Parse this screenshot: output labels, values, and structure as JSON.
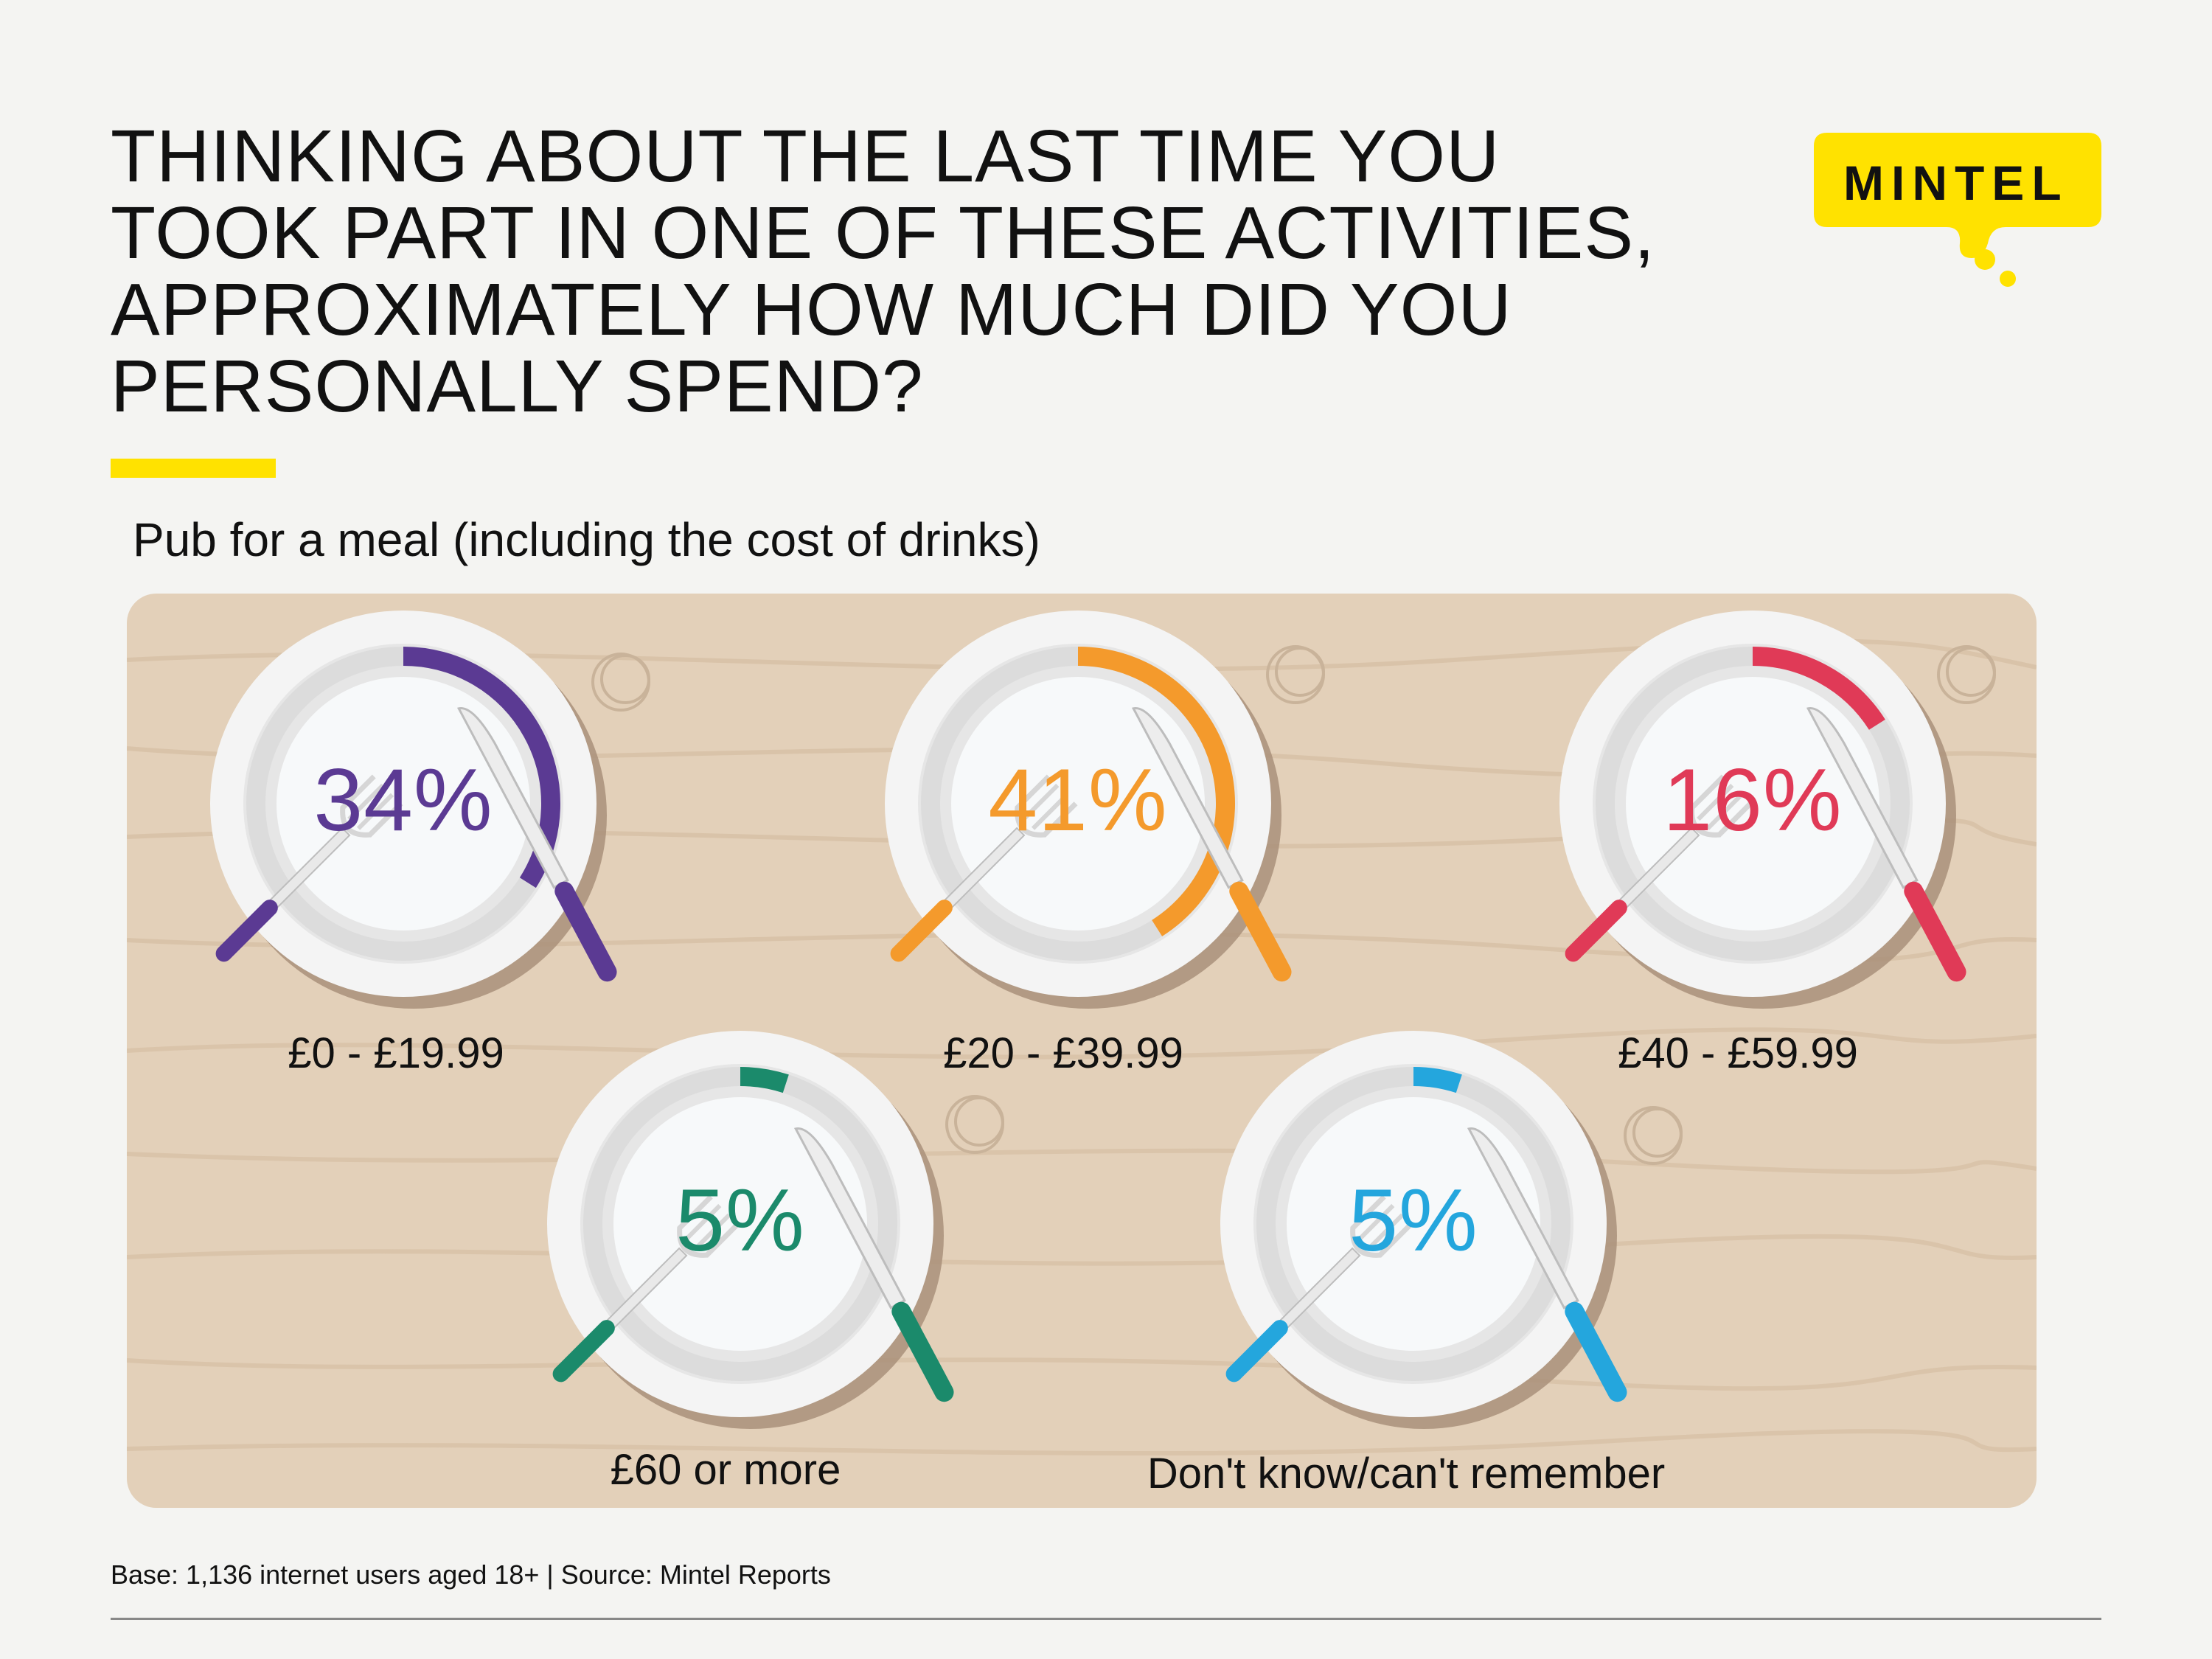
{
  "title_lines": [
    "THINKING ABOUT THE LAST TIME YOU",
    "TOOK PART IN ONE OF THESE ACTIVITIES,",
    "APPROXIMATELY HOW MUCH DID YOU",
    "PERSONALLY SPEND?"
  ],
  "logo_text": "MINTEL",
  "footnote": "Base: 1,136 internet users aged 18+ | Source: Mintel Reports",
  "colors": {
    "accent_yellow": "#ffe200",
    "table": "#e3d0b9",
    "plate": "#f4f4f4",
    "plate_inner": "#f7f9fa"
  },
  "chart_data": {
    "type": "pie",
    "title": "Pub for a meal (including the cost of drinks)",
    "categories": [
      "£0 - £19.99",
      "£20 - £39.99",
      "£40 - £59.99",
      "£60 or more",
      "Don't know/can't remember"
    ],
    "values": [
      34,
      41,
      16,
      5,
      5
    ],
    "value_labels": [
      "34%",
      "41%",
      "16%",
      "5%",
      "5%"
    ],
    "series_colors": [
      "#5b3a93",
      "#f49a2c",
      "#e03a57",
      "#1b8a6b",
      "#24a6dd"
    ],
    "unit": "%"
  }
}
